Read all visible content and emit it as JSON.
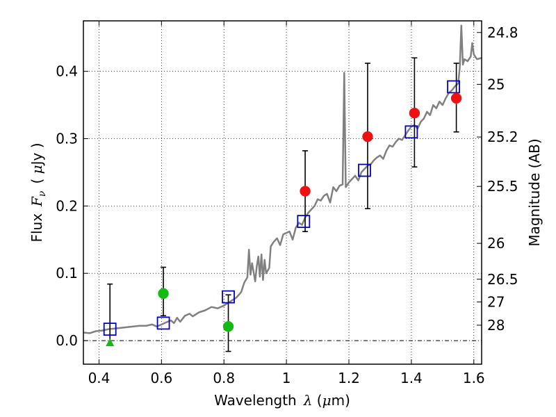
{
  "chart_data": {
    "type": "scatter",
    "xlabel": {
      "prefix": "Wavelength",
      "symbol": "λ",
      "unit_open": " (",
      "unit_mu": "μ",
      "unit_rest": "m)"
    },
    "ylabel": {
      "prefix": "Flux",
      "symbol": "F",
      "sub": "ν",
      "unit_open": "( ",
      "unit_mu": "μ",
      "unit_rest": "Jy )"
    },
    "y2label": "Magnitude (AB)",
    "xlim": [
      0.35,
      1.625
    ],
    "ylim": [
      -0.035,
      0.475
    ],
    "grid": true,
    "x_ticks": [
      0.4,
      0.6,
      0.8,
      1.0,
      1.2,
      1.4,
      1.6
    ],
    "x_tick_labels": [
      "0.4",
      "0.6",
      "0.8",
      "1",
      "1.2",
      "1.4",
      "1.6"
    ],
    "y_ticks": [
      0.0,
      0.1,
      0.2,
      0.3,
      0.4
    ],
    "y_tick_labels": [
      "0.0",
      "0.1",
      "0.2",
      "0.3",
      "0.4"
    ],
    "magnitude_ticks": [
      {
        "flux": 0.4577,
        "label": "24.8"
      },
      {
        "flux": 0.3807,
        "label": "25"
      },
      {
        "flux": 0.3025,
        "label": "25.2"
      },
      {
        "flux": 0.2291,
        "label": "25.5"
      },
      {
        "flux": 0.1445,
        "label": "26"
      },
      {
        "flux": 0.0912,
        "label": "26.5"
      },
      {
        "flux": 0.0575,
        "label": "27"
      },
      {
        "flux": 0.0229,
        "label": "28"
      }
    ],
    "zero_line": 0.0,
    "series": [
      {
        "kind": "model-spectrum",
        "color": "#808080",
        "points": [
          [
            0.35,
            0.012
          ],
          [
            0.37,
            0.011
          ],
          [
            0.39,
            0.014
          ],
          [
            0.41,
            0.015
          ],
          [
            0.43,
            0.017
          ],
          [
            0.45,
            0.018
          ],
          [
            0.47,
            0.019
          ],
          [
            0.49,
            0.02
          ],
          [
            0.51,
            0.021
          ],
          [
            0.53,
            0.022
          ],
          [
            0.55,
            0.022
          ],
          [
            0.57,
            0.024
          ],
          [
            0.585,
            0.021
          ],
          [
            0.6,
            0.024
          ],
          [
            0.615,
            0.027
          ],
          [
            0.63,
            0.03
          ],
          [
            0.64,
            0.026
          ],
          [
            0.65,
            0.034
          ],
          [
            0.66,
            0.028
          ],
          [
            0.675,
            0.037
          ],
          [
            0.69,
            0.04
          ],
          [
            0.7,
            0.036
          ],
          [
            0.72,
            0.042
          ],
          [
            0.74,
            0.045
          ],
          [
            0.76,
            0.05
          ],
          [
            0.78,
            0.048
          ],
          [
            0.8,
            0.052
          ],
          [
            0.82,
            0.058
          ],
          [
            0.84,
            0.064
          ],
          [
            0.855,
            0.072
          ],
          [
            0.865,
            0.086
          ],
          [
            0.875,
            0.094
          ],
          [
            0.88,
            0.135
          ],
          [
            0.885,
            0.098
          ],
          [
            0.89,
            0.115
          ],
          [
            0.9,
            0.088
          ],
          [
            0.905,
            0.11
          ],
          [
            0.91,
            0.125
          ],
          [
            0.915,
            0.095
          ],
          [
            0.92,
            0.128
          ],
          [
            0.925,
            0.09
          ],
          [
            0.93,
            0.12
          ],
          [
            0.935,
            0.1
          ],
          [
            0.945,
            0.108
          ],
          [
            0.95,
            0.14
          ],
          [
            0.96,
            0.147
          ],
          [
            0.97,
            0.152
          ],
          [
            0.98,
            0.142
          ],
          [
            0.99,
            0.158
          ],
          [
            1.0,
            0.16
          ],
          [
            1.01,
            0.162
          ],
          [
            1.02,
            0.15
          ],
          [
            1.03,
            0.168
          ],
          [
            1.04,
            0.175
          ],
          [
            1.05,
            0.172
          ],
          [
            1.06,
            0.183
          ],
          [
            1.07,
            0.19
          ],
          [
            1.08,
            0.195
          ],
          [
            1.09,
            0.2
          ],
          [
            1.1,
            0.21
          ],
          [
            1.11,
            0.208
          ],
          [
            1.12,
            0.215
          ],
          [
            1.13,
            0.218
          ],
          [
            1.14,
            0.205
          ],
          [
            1.15,
            0.228
          ],
          [
            1.16,
            0.222
          ],
          [
            1.17,
            0.23
          ],
          [
            1.18,
            0.232
          ],
          [
            1.185,
            0.398
          ],
          [
            1.19,
            0.228
          ],
          [
            1.2,
            0.235
          ],
          [
            1.21,
            0.24
          ],
          [
            1.22,
            0.245
          ],
          [
            1.23,
            0.238
          ],
          [
            1.24,
            0.25
          ],
          [
            1.25,
            0.255
          ],
          [
            1.26,
            0.26
          ],
          [
            1.27,
            0.262
          ],
          [
            1.28,
            0.268
          ],
          [
            1.29,
            0.272
          ],
          [
            1.3,
            0.275
          ],
          [
            1.31,
            0.27
          ],
          [
            1.32,
            0.282
          ],
          [
            1.33,
            0.29
          ],
          [
            1.34,
            0.288
          ],
          [
            1.35,
            0.295
          ],
          [
            1.36,
            0.3
          ],
          [
            1.37,
            0.298
          ],
          [
            1.38,
            0.305
          ],
          [
            1.39,
            0.312
          ],
          [
            1.4,
            0.318
          ],
          [
            1.41,
            0.32
          ],
          [
            1.42,
            0.315
          ],
          [
            1.43,
            0.325
          ],
          [
            1.44,
            0.33
          ],
          [
            1.45,
            0.34
          ],
          [
            1.46,
            0.335
          ],
          [
            1.47,
            0.35
          ],
          [
            1.48,
            0.345
          ],
          [
            1.49,
            0.355
          ],
          [
            1.5,
            0.35
          ],
          [
            1.51,
            0.36
          ],
          [
            1.52,
            0.368
          ],
          [
            1.53,
            0.372
          ],
          [
            1.54,
            0.378
          ],
          [
            1.55,
            0.382
          ],
          [
            1.555,
            0.405
          ],
          [
            1.56,
            0.468
          ],
          [
            1.565,
            0.41
          ],
          [
            1.57,
            0.418
          ],
          [
            1.58,
            0.415
          ],
          [
            1.59,
            0.422
          ],
          [
            1.595,
            0.442
          ],
          [
            1.6,
            0.425
          ],
          [
            1.61,
            0.418
          ],
          [
            1.625,
            0.42
          ]
        ]
      },
      {
        "kind": "model-photometry",
        "marker": "open-square",
        "color": "#0000cc",
        "x": [
          0.435,
          0.606,
          0.814,
          1.055,
          1.25,
          1.4,
          1.535
        ],
        "y": [
          0.017,
          0.026,
          0.065,
          0.177,
          0.253,
          0.31,
          0.377
        ]
      },
      {
        "kind": "observed-detection",
        "marker": "filled-circle",
        "color": "#ee1111",
        "x": [
          1.06,
          1.26,
          1.41,
          1.544
        ],
        "y": [
          0.222,
          0.303,
          0.338,
          0.36
        ],
        "yerr_low": [
          0.162,
          0.196,
          0.258,
          0.31
        ],
        "yerr_high": [
          0.282,
          0.412,
          0.42,
          0.412
        ]
      },
      {
        "kind": "observed-low",
        "marker": "filled-circle",
        "color": "#11bb11",
        "x": [
          0.606,
          0.814
        ],
        "y": [
          0.07,
          0.021
        ],
        "yerr_low": [
          0.037,
          -0.016
        ],
        "yerr_high": [
          0.109,
          0.068
        ]
      },
      {
        "kind": "observed-limit",
        "marker": "filled-triangle",
        "color": "#11bb11",
        "x": [
          0.435
        ],
        "y": [
          -0.003
        ],
        "yerr_low": [
          -0.003
        ],
        "yerr_high": [
          0.084
        ]
      }
    ]
  }
}
